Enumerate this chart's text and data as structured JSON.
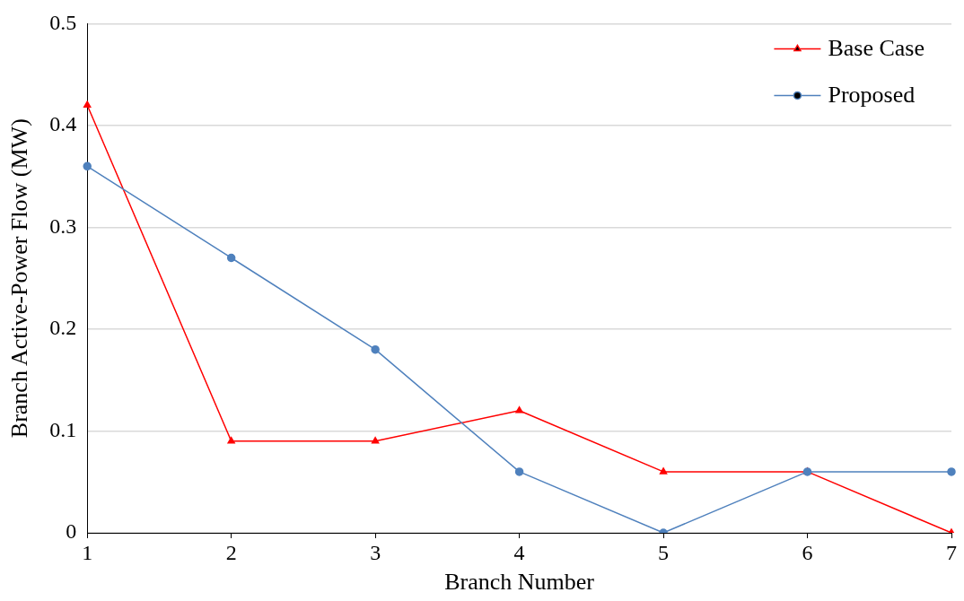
{
  "chart_data": {
    "type": "line",
    "xlabel": "Branch Number",
    "ylabel": "Branch Active-Power Flow (MW)",
    "categories": [
      "1",
      "2",
      "3",
      "4",
      "5",
      "6",
      "7"
    ],
    "series": [
      {
        "name": "Base Case",
        "color": "#ff0000",
        "marker": "triangle",
        "values": [
          0.42,
          0.09,
          0.09,
          0.12,
          0.06,
          0.06,
          0
        ]
      },
      {
        "name": "Proposed",
        "color": "#4f81bd",
        "marker": "circle",
        "values": [
          0.36,
          0.27,
          0.18,
          0.06,
          0,
          0.06,
          0.06
        ]
      }
    ],
    "ylim": [
      0,
      0.5
    ],
    "yticks": [
      0,
      0.1,
      0.2,
      0.3,
      0.4,
      0.5
    ],
    "grid": "y",
    "legend": "top right",
    "line_style": "solid"
  }
}
